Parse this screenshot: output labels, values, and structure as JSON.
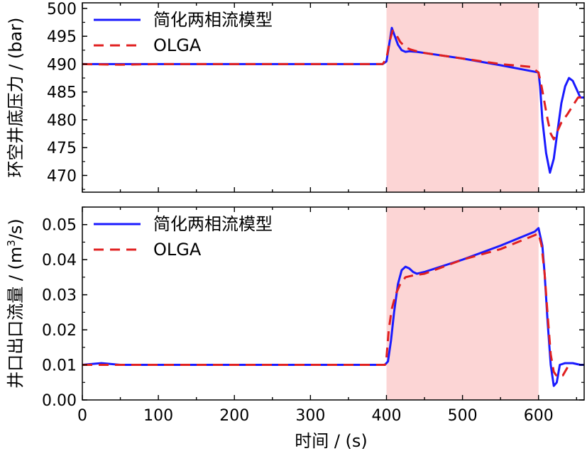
{
  "colors": {
    "sim": "#1a1aff",
    "olga": "#e02020",
    "shade": "#fcd5d5",
    "axis": "#000000"
  },
  "chart_data": [
    {
      "type": "line",
      "ylabel": "环空井底压力 / (bar)",
      "xlim": [
        0,
        660
      ],
      "ylim": [
        467,
        501
      ],
      "yticks": [
        470,
        475,
        480,
        485,
        490,
        495,
        500
      ],
      "shaded_x": [
        400,
        600
      ],
      "legend_position": "top-left",
      "series": [
        {
          "name": "简化两相流模型",
          "color_key": "sim",
          "style": "solid",
          "x": [
            0,
            50,
            100,
            200,
            300,
            395,
            400,
            403,
            407,
            411,
            415,
            420,
            425,
            430,
            440,
            450,
            500,
            550,
            600,
            602,
            605,
            610,
            615,
            620,
            625,
            630,
            635,
            640,
            645,
            650,
            655,
            660
          ],
          "y": [
            490,
            490,
            490,
            490,
            490,
            490,
            490.5,
            493,
            496.5,
            495,
            493.5,
            492.5,
            492.2,
            492.3,
            492.2,
            492,
            491,
            489.8,
            488.5,
            486,
            480,
            474,
            470.5,
            473,
            478,
            483,
            486,
            487.5,
            487,
            485.5,
            484,
            484
          ]
        },
        {
          "name": "OLGA",
          "color_key": "olga",
          "style": "dash",
          "x": [
            0,
            50,
            100,
            200,
            300,
            395,
            400,
            404,
            408,
            412,
            418,
            425,
            432,
            440,
            450,
            500,
            550,
            590,
            600,
            604,
            608,
            612,
            616,
            620,
            625,
            630,
            638,
            645,
            652,
            660
          ],
          "y": [
            490,
            489.9,
            490,
            490,
            490,
            490,
            491,
            494,
            496,
            495.5,
            494,
            493,
            492.6,
            492.3,
            492,
            491,
            490,
            489.5,
            488.5,
            486,
            483,
            480,
            477.5,
            476.5,
            478,
            479.5,
            481,
            482.5,
            484,
            484
          ]
        }
      ]
    },
    {
      "type": "line",
      "ylabel": "井口出口流量 / (m³/s)",
      "xlabel": "时间 / (s)",
      "xlim": [
        0,
        660
      ],
      "ylim": [
        0,
        0.055
      ],
      "xticks": [
        0,
        100,
        200,
        300,
        400,
        500,
        600
      ],
      "yticks": [
        0.0,
        0.01,
        0.02,
        0.03,
        0.04,
        0.05
      ],
      "ytick_labels": [
        "0.00",
        "0.01",
        "0.02",
        "0.03",
        "0.04",
        "0.05"
      ],
      "shaded_x": [
        400,
        600
      ],
      "legend_position": "top-left",
      "series": [
        {
          "name": "简化两相流模型",
          "color_key": "sim",
          "style": "solid",
          "x": [
            0,
            25,
            50,
            100,
            200,
            300,
            398,
            402,
            406,
            410,
            415,
            420,
            425,
            430,
            435,
            440,
            450,
            500,
            550,
            595,
            600,
            605,
            608,
            612,
            616,
            620,
            624,
            628,
            635,
            645,
            655,
            660
          ],
          "y": [
            0.01,
            0.0105,
            0.01,
            0.01,
            0.01,
            0.01,
            0.01,
            0.011,
            0.017,
            0.025,
            0.033,
            0.037,
            0.038,
            0.0375,
            0.0365,
            0.036,
            0.0365,
            0.04,
            0.044,
            0.048,
            0.049,
            0.044,
            0.036,
            0.022,
            0.01,
            0.004,
            0.005,
            0.01,
            0.0105,
            0.0105,
            0.01,
            0.01
          ]
        },
        {
          "name": "OLGA",
          "color_key": "olga",
          "style": "dash",
          "x": [
            0,
            50,
            100,
            200,
            300,
            398,
            400,
            403,
            407,
            412,
            418,
            425,
            435,
            450,
            500,
            550,
            595,
            600,
            604,
            608,
            612,
            616,
            620,
            625,
            632,
            640
          ],
          "y": [
            0.01,
            0.01,
            0.01,
            0.01,
            0.01,
            0.01,
            0.012,
            0.02,
            0.026,
            0.03,
            0.033,
            0.035,
            0.0355,
            0.036,
            0.04,
            0.043,
            0.047,
            0.0475,
            0.044,
            0.036,
            0.024,
            0.013,
            0.008,
            0.0065,
            0.007,
            0.01
          ]
        }
      ]
    }
  ]
}
